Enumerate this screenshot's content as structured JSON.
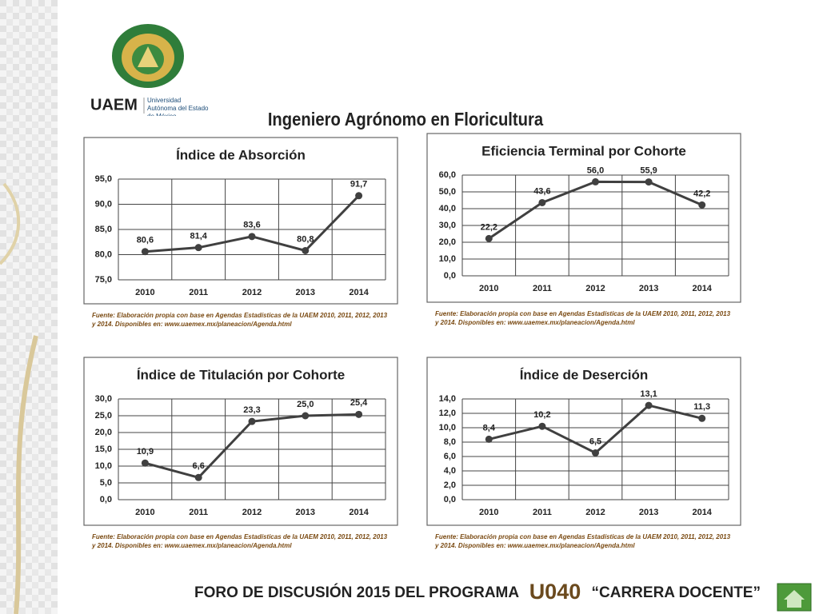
{
  "page": {
    "logo_text": "UAEM",
    "logo_subtitle": "Universidad Autónoma del Estado de México",
    "title": "Ingeniero Agrónomo en Floricultura",
    "footer": {
      "prefix": "FORO DE DISCUSIÓN 2015 DEL PROGRAMA",
      "code": "U040",
      "suffix": "“CARRERA DOCENTE”"
    }
  },
  "chart_data": [
    {
      "type": "line",
      "title": "Índice de Absorción",
      "categories": [
        "2010",
        "2011",
        "2012",
        "2013",
        "2014"
      ],
      "values": [
        80.6,
        81.4,
        83.6,
        80.8,
        91.7
      ],
      "value_labels": [
        "80,6",
        "81,4",
        "83,6",
        "80,8",
        "91,7"
      ],
      "ylim": [
        75,
        95
      ],
      "yticks": [
        {
          "value": 75,
          "label": "75,0"
        },
        {
          "value": 80,
          "label": "80,0"
        },
        {
          "value": 85,
          "label": "85,0"
        },
        {
          "value": 90,
          "label": "90,0"
        },
        {
          "value": 95,
          "label": "95,0"
        }
      ],
      "color": "#404040",
      "grid": true,
      "source": "Fuente: Elaboración propia con base en Agendas Estadísticas de la UAEM 2010, 2011, 2012, 2013 y 2014. Disponibles en: www.uaemex.mx/planeacion/Agenda.html"
    },
    {
      "type": "line",
      "title": "Eficiencia Terminal por Cohorte",
      "categories": [
        "2010",
        "2011",
        "2012",
        "2013",
        "2014"
      ],
      "values": [
        22.2,
        43.6,
        56.0,
        55.9,
        42.2
      ],
      "value_labels": [
        "22,2",
        "43,6",
        "56,0",
        "55,9",
        "42,2"
      ],
      "ylim": [
        0,
        60
      ],
      "yticks": [
        {
          "value": 0,
          "label": "0,0"
        },
        {
          "value": 10,
          "label": "10,0"
        },
        {
          "value": 20,
          "label": "20,0"
        },
        {
          "value": 30,
          "label": "30,0"
        },
        {
          "value": 40,
          "label": "40,0"
        },
        {
          "value": 50,
          "label": "50,0"
        },
        {
          "value": 60,
          "label": "60,0"
        }
      ],
      "color": "#404040",
      "grid": true,
      "source": "Fuente: Elaboración propia con base en Agendas Estadísticas de la UAEM 2010, 2011, 2012, 2013 y 2014. Disponibles en: www.uaemex.mx/planeacion/Agenda.html"
    },
    {
      "type": "line",
      "title": "Índice de Titulación por Cohorte",
      "categories": [
        "2010",
        "2011",
        "2012",
        "2013",
        "2014"
      ],
      "values": [
        10.9,
        6.6,
        23.3,
        25.0,
        25.4
      ],
      "value_labels": [
        "10,9",
        "6,6",
        "23,3",
        "25,0",
        "25,4"
      ],
      "ylim": [
        0,
        30
      ],
      "yticks": [
        {
          "value": 0,
          "label": "0,0"
        },
        {
          "value": 5,
          "label": "5,0"
        },
        {
          "value": 10,
          "label": "10,0"
        },
        {
          "value": 15,
          "label": "15,0"
        },
        {
          "value": 20,
          "label": "20,0"
        },
        {
          "value": 25,
          "label": "25,0"
        },
        {
          "value": 30,
          "label": "30,0"
        }
      ],
      "color": "#404040",
      "grid": true,
      "source": "Fuente: Elaboración propia con base en Agendas Estadísticas de la UAEM 2010, 2011, 2012, 2013 y 2014. Disponibles en: www.uaemex.mx/planeacion/Agenda.html"
    },
    {
      "type": "line",
      "title": "Índice de Deserción",
      "categories": [
        "2010",
        "2011",
        "2012",
        "2013",
        "2014"
      ],
      "values": [
        8.4,
        10.2,
        6.5,
        13.1,
        11.3
      ],
      "value_labels": [
        "8,4",
        "10,2",
        "6,5",
        "13,1",
        "11,3"
      ],
      "ylim": [
        0,
        14
      ],
      "yticks": [
        {
          "value": 0,
          "label": "0,0"
        },
        {
          "value": 2,
          "label": "2,0"
        },
        {
          "value": 4,
          "label": "4,0"
        },
        {
          "value": 6,
          "label": "6,0"
        },
        {
          "value": 8,
          "label": "8,0"
        },
        {
          "value": 10,
          "label": "10,0"
        },
        {
          "value": 12,
          "label": "12,0"
        },
        {
          "value": 14,
          "label": "14,0"
        }
      ],
      "color": "#404040",
      "grid": true,
      "source": "Fuente: Elaboración propia con base en Agendas Estadísticas de la UAEM 2010, 2011, 2012, 2013 y 2014. Disponibles en: www.uaemex.mx/planeacion/Agenda.html"
    }
  ]
}
